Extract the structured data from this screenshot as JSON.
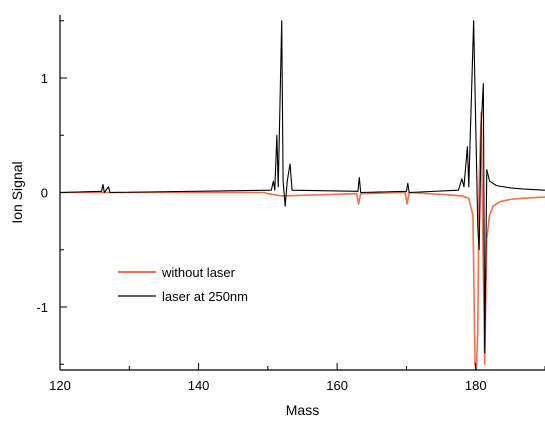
{
  "chart_data": {
    "type": "line",
    "title": "",
    "xlabel": "Mass",
    "ylabel": "Ion Signal",
    "xlim": [
      120,
      190
    ],
    "ylim": [
      -1.55,
      1.55
    ],
    "x_ticks": [
      120,
      140,
      160,
      180
    ],
    "y_ticks": [
      -1,
      0,
      1
    ],
    "grid": false,
    "legend_position": "lower-left",
    "series": [
      {
        "name": "without laser",
        "color": "#f07050",
        "baseline": 0,
        "points": [
          [
            120,
            0
          ],
          [
            149.5,
            0
          ],
          [
            150,
            -0.01
          ],
          [
            151,
            -0.02
          ],
          [
            152,
            -0.03
          ],
          [
            162.8,
            -0.01
          ],
          [
            163.1,
            -0.1
          ],
          [
            163.4,
            -0.01
          ],
          [
            169.8,
            0
          ],
          [
            170.1,
            -0.1
          ],
          [
            170.4,
            0
          ],
          [
            176,
            -0.02
          ],
          [
            178,
            -0.03
          ],
          [
            179,
            -0.05
          ],
          [
            179.6,
            -0.2
          ],
          [
            179.9,
            -1.5
          ],
          [
            180.1,
            -1.55
          ],
          [
            180.3,
            -1.2
          ],
          [
            180.5,
            0.1
          ],
          [
            180.8,
            0.7
          ],
          [
            181.0,
            -0.3
          ],
          [
            181.3,
            -1.5
          ],
          [
            181.6,
            -0.4
          ],
          [
            182.0,
            -0.2
          ],
          [
            182.5,
            -0.12
          ],
          [
            183.5,
            -0.08
          ],
          [
            185,
            -0.06
          ],
          [
            187,
            -0.05
          ],
          [
            190,
            -0.04
          ]
        ]
      },
      {
        "name": "laser at 250nm",
        "color": "#000000",
        "baseline": 0,
        "points": [
          [
            120,
            0
          ],
          [
            126,
            0.01
          ],
          [
            126.2,
            0.07
          ],
          [
            126.4,
            0
          ],
          [
            127,
            0.05
          ],
          [
            127.2,
            0
          ],
          [
            150.5,
            0.02
          ],
          [
            150.8,
            0.1
          ],
          [
            151.0,
            0.02
          ],
          [
            151.3,
            0.5
          ],
          [
            151.5,
            0.05
          ],
          [
            152.0,
            1.5
          ],
          [
            152.2,
            0.1
          ],
          [
            152.5,
            -0.12
          ],
          [
            152.8,
            0.1
          ],
          [
            153.2,
            0.25
          ],
          [
            153.5,
            0.02
          ],
          [
            163.0,
            0.01
          ],
          [
            163.2,
            0.13
          ],
          [
            163.4,
            0
          ],
          [
            170.0,
            0.01
          ],
          [
            170.2,
            0.08
          ],
          [
            170.4,
            0
          ],
          [
            177.5,
            0.02
          ],
          [
            178.0,
            0.12
          ],
          [
            178.3,
            0.05
          ],
          [
            178.8,
            0.4
          ],
          [
            179.0,
            0.05
          ],
          [
            179.7,
            1.5
          ],
          [
            180.0,
            0.6
          ],
          [
            180.3,
            -0.3
          ],
          [
            180.5,
            -0.5
          ],
          [
            180.8,
            0.6
          ],
          [
            181.1,
            0.95
          ],
          [
            181.3,
            -1.4
          ],
          [
            181.6,
            0.2
          ],
          [
            182.0,
            0.1
          ],
          [
            183.0,
            0.06
          ],
          [
            185,
            0.04
          ],
          [
            187,
            0.03
          ],
          [
            190,
            0.02
          ]
        ]
      }
    ]
  }
}
